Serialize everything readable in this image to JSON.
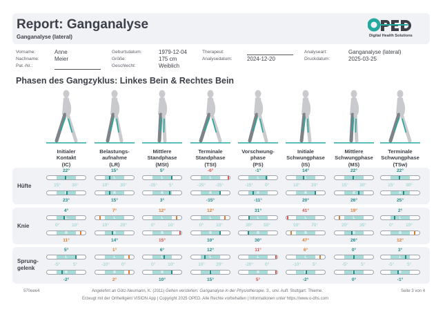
{
  "header": {
    "title": "Report: Ganganalyse",
    "subtitle": "Ganganalyse (lateral)",
    "logo_text": "OPED",
    "logo_tagline": "Digital Health Solutions",
    "brand_teal": "#23a99d",
    "brand_dark": "#3d4048"
  },
  "patient": {
    "vorname_label": "Vorname:",
    "vorname": "Anne",
    "nachname_label": "Nachname:",
    "nachname": "Meier",
    "patnr_label": "Pat.-Nr.:",
    "geburtsdatum_label": "Geburtsdatum:",
    "geburtsdatum": "1979-12-04",
    "groesse_label": "Größe:",
    "groesse": "175 cm",
    "geschlecht_label": "Geschlecht:",
    "geschlecht": "Weiblich",
    "therapeut_label": "Therapeut:",
    "analysedatum_label": "Analysedatum:",
    "analysedatum": "2024-12-20",
    "analyseart_label": "Analyseart:",
    "analyseart": "Ganganalyse (lateral)",
    "druckdatum_label": "Druckdatum:",
    "druckdatum": "2025-03-25"
  },
  "section_title": "Phasen des Gangzyklus: Linkes Bein & Rechtes Bein",
  "phases": [
    {
      "line1": "Initialer",
      "line2": "Kontakt",
      "abbr": "(IC)"
    },
    {
      "line1": "Belastungs-",
      "line2": "aufnahme",
      "abbr": "(LR)"
    },
    {
      "line1": "Mittlere",
      "line2": "Standphase",
      "abbr": "(MSt)"
    },
    {
      "line1": "Terminale",
      "line2": "Standphase",
      "abbr": "(TSt)"
    },
    {
      "line1": "Vorschwung-",
      "line2": "phase",
      "abbr": "(PS)"
    },
    {
      "line1": "Initiale",
      "line2": "Schwungphase",
      "abbr": "(IS)"
    },
    {
      "line1": "Mittlere",
      "line2": "Schwungphase",
      "abbr": "(MS)"
    },
    {
      "line1": "Terminale",
      "line2": "Schwungphase",
      "abbr": "(TSw)"
    }
  ],
  "leg_labels": {
    "left": "L",
    "right": "R"
  },
  "status_colors": {
    "normal": "#1f8a86",
    "warn": "#e07a2a",
    "alert": "#d9534f"
  },
  "joints": [
    {
      "name": "Hüfte",
      "cells": [
        {
          "min": "15°",
          "max": "30°",
          "rmin": 15,
          "rmax": 30,
          "left": {
            "text": "22°",
            "value": 22,
            "status": "normal"
          },
          "right": {
            "text": "23°",
            "value": 23,
            "status": "normal"
          }
        },
        {
          "min": "10°",
          "max": "30°",
          "rmin": 10,
          "rmax": 30,
          "left": {
            "text": "15°",
            "value": 15,
            "status": "normal"
          },
          "right": {
            "text": "15°",
            "value": 15,
            "status": "normal"
          }
        },
        {
          "min": "-15°",
          "max": "5°",
          "rmin": -15,
          "rmax": 5,
          "left": {
            "text": "5°",
            "value": 5,
            "status": "normal"
          },
          "right": {
            "text": "3°",
            "value": 3,
            "status": "normal"
          }
        },
        {
          "min": "-25°",
          "max": "-15°",
          "rmin": -25,
          "rmax": -15,
          "left": {
            "text": "-6°",
            "value": -6,
            "status": "alert"
          },
          "right": {
            "text": "-15°",
            "value": -15,
            "status": "normal"
          }
        },
        {
          "min": "-15°",
          "max": "0°",
          "rmin": -15,
          "rmax": 0,
          "left": {
            "text": "-1°",
            "value": -1,
            "status": "normal"
          },
          "right": {
            "text": "-11°",
            "value": -11,
            "status": "normal"
          }
        },
        {
          "min": "10°",
          "max": "20°",
          "rmin": 10,
          "rmax": 20,
          "left": {
            "text": "14°",
            "value": 14,
            "status": "normal"
          },
          "right": {
            "text": "20°",
            "value": 20,
            "status": "normal"
          }
        },
        {
          "min": "15°",
          "max": "30°",
          "rmin": 15,
          "rmax": 30,
          "left": {
            "text": "22°",
            "value": 22,
            "status": "normal"
          },
          "right": {
            "text": "26°",
            "value": 26,
            "status": "normal"
          }
        },
        {
          "min": "15°",
          "max": "30°",
          "rmin": 15,
          "rmax": 30,
          "left": {
            "text": "22°",
            "value": 22,
            "status": "normal"
          },
          "right": {
            "text": "25°",
            "value": 25,
            "status": "normal"
          }
        }
      ]
    },
    {
      "name": "Knie",
      "cells": [
        {
          "min": "0°",
          "max": "10°",
          "rmin": 0,
          "rmax": 10,
          "left": {
            "text": "4°",
            "value": 4,
            "status": "normal"
          },
          "right": {
            "text": "11°",
            "value": 11,
            "status": "warn"
          }
        },
        {
          "min": "10°",
          "max": "20°",
          "rmin": 10,
          "rmax": 20,
          "left": {
            "text": "7°",
            "value": 7,
            "status": "warn"
          },
          "right": {
            "text": "14°",
            "value": 14,
            "status": "normal"
          }
        },
        {
          "min": "0°",
          "max": "10°",
          "rmin": 0,
          "rmax": 10,
          "left": {
            "text": "12°",
            "value": 12,
            "status": "warn"
          },
          "right": {
            "text": "15°",
            "value": 15,
            "status": "alert"
          }
        },
        {
          "min": "0°",
          "max": "10°",
          "rmin": 0,
          "rmax": 10,
          "left": {
            "text": "12°",
            "value": 12,
            "status": "warn"
          },
          "right": {
            "text": "10°",
            "value": 10,
            "status": "normal"
          }
        },
        {
          "min": "30°",
          "max": "50°",
          "rmin": 30,
          "rmax": 50,
          "left": {
            "text": "31°",
            "value": 31,
            "status": "normal"
          },
          "right": {
            "text": "30°",
            "value": 30,
            "status": "normal"
          }
        },
        {
          "min": "50°",
          "max": "70°",
          "rmin": 50,
          "rmax": 70,
          "left": {
            "text": "41°",
            "value": 41,
            "status": "alert"
          },
          "right": {
            "text": "47°",
            "value": 47,
            "status": "warn"
          }
        },
        {
          "min": "20°",
          "max": "35°",
          "rmin": 20,
          "rmax": 35,
          "left": {
            "text": "19°",
            "value": 19,
            "status": "warn"
          },
          "right": {
            "text": "26°",
            "value": 26,
            "status": "normal"
          }
        },
        {
          "min": "0°",
          "max": "10°",
          "rmin": 0,
          "rmax": 10,
          "left": {
            "text": "2°",
            "value": 2,
            "status": "normal"
          },
          "right": {
            "text": "12°",
            "value": 12,
            "status": "warn"
          }
        }
      ]
    },
    {
      "name": "Sprung-\ngelenk",
      "name_line1": "Sprung-",
      "name_line2": "gelenk",
      "cells": [
        {
          "min": "-5°",
          "max": "5°",
          "rmin": -5,
          "rmax": 5,
          "left": {
            "text": "5°",
            "value": 5,
            "status": "normal"
          },
          "right": {
            "text": "-2°",
            "value": -2,
            "status": "normal"
          }
        },
        {
          "min": "-10°",
          "max": "0°",
          "rmin": -10,
          "rmax": 0,
          "left": {
            "text": "1°",
            "value": 1,
            "status": "warn"
          },
          "right": {
            "text": "2°",
            "value": 2,
            "status": "warn"
          }
        },
        {
          "min": "0°",
          "max": "10°",
          "rmin": 0,
          "rmax": 10,
          "left": {
            "text": "6°",
            "value": 6,
            "status": "normal"
          },
          "right": {
            "text": "10°",
            "value": 10,
            "status": "normal"
          }
        },
        {
          "min": "10°",
          "max": "20°",
          "rmin": 10,
          "rmax": 20,
          "left": {
            "text": "12°",
            "value": 12,
            "status": "normal"
          },
          "right": {
            "text": "15°",
            "value": 15,
            "status": "normal"
          }
        },
        {
          "min": "-20°",
          "max": "0°",
          "rmin": -20,
          "rmax": 0,
          "left": {
            "text": "11°",
            "value": 11,
            "status": "alert"
          },
          "right": {
            "text": "5°",
            "value": 5,
            "status": "alert"
          }
        },
        {
          "min": "-10°",
          "max": "5°",
          "rmin": -10,
          "rmax": 5,
          "left": {
            "text": "6°",
            "value": 6,
            "status": "warn"
          },
          "right": {
            "text": "-2°",
            "value": -2,
            "status": "normal"
          }
        },
        {
          "min": "-5°",
          "max": "5°",
          "rmin": -5,
          "rmax": 5,
          "left": {
            "text": "0°",
            "value": 0,
            "status": "normal"
          },
          "right": {
            "text": "0°",
            "value": 0,
            "status": "normal"
          }
        },
        {
          "min": "-5°",
          "max": "5°",
          "rmin": -5,
          "rmax": 5,
          "left": {
            "text": "3°",
            "value": 3,
            "status": "normal"
          },
          "right": {
            "text": "-1°",
            "value": -1,
            "status": "normal"
          }
        }
      ]
    }
  ],
  "footer": {
    "id": "570eee4",
    "citation_prefix": "Angelehnt an Götz-Neumann, K. (2011) ",
    "citation_title": "Gehen verstehen: Ganganalyse in der Physiotherapie",
    "citation_suffix": ". 3., unv. Aufl. Stuttgart: Thieme.",
    "generated": "Erzeugt mit der Orthelligent VISION App | Copyright 2025 OPED. Alle Rechte vorbehalten | Informationen unter https://www.o-dhs.com",
    "page": "Seite 3 von 4"
  }
}
